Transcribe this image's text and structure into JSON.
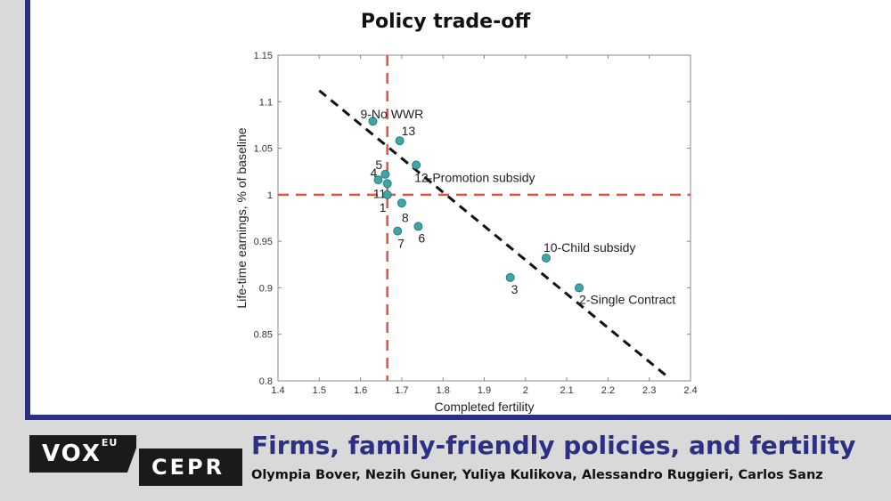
{
  "chart_data": {
    "type": "scatter",
    "title": "Policy trade-off",
    "xlabel": "Completed fertility",
    "ylabel": "Life-time earnings, % of baseline",
    "xlim": [
      1.4,
      2.4
    ],
    "ylim": [
      0.8,
      1.15
    ],
    "xticks": [
      "1.4",
      "1.5",
      "1.6",
      "1.7",
      "1.8",
      "1.9",
      "2",
      "2.1",
      "2.2",
      "2.3",
      "2.4"
    ],
    "yticks": [
      "0.8",
      "0.85",
      "0.9",
      "0.95",
      "1",
      "1.05",
      "1.1",
      "1.15"
    ],
    "grid": false,
    "points": [
      {
        "label": "9-No WWR",
        "x": 1.63,
        "y": 1.079
      },
      {
        "label": "13",
        "x": 1.695,
        "y": 1.058
      },
      {
        "label": "12-Promotion subsidy",
        "x": 1.735,
        "y": 1.032
      },
      {
        "label": "5",
        "x": 1.66,
        "y": 1.022
      },
      {
        "label": "4",
        "x": 1.643,
        "y": 1.016
      },
      {
        "label": "11",
        "x": 1.665,
        "y": 1.012
      },
      {
        "label": "1",
        "x": 1.665,
        "y": 1.0
      },
      {
        "label": "8",
        "x": 1.7,
        "y": 0.991
      },
      {
        "label": "6",
        "x": 1.74,
        "y": 0.966
      },
      {
        "label": "7",
        "x": 1.69,
        "y": 0.961
      },
      {
        "label": "10-Child subsidy",
        "x": 2.05,
        "y": 0.932
      },
      {
        "label": "3",
        "x": 1.963,
        "y": 0.911
      },
      {
        "label": "2-Single Contract",
        "x": 2.13,
        "y": 0.9
      }
    ],
    "reference_lines": {
      "vertical_x": 1.665,
      "horizontal_y": 1.0,
      "color": "#e8523f"
    },
    "trend_line": {
      "x": [
        1.5,
        2.34
      ],
      "y": [
        1.112,
        0.806
      ],
      "style": "dashed",
      "color": "#111111"
    },
    "marker_color": "#3fa6a6"
  },
  "footer": {
    "vox": "VOX",
    "vox_sup": "EU",
    "cepr": "CEPR",
    "headline": "Firms, family-friendly policies, and fertility",
    "authors": "Olympia Bover, Nezih Guner, Yuliya Kulikova, Alessandro Ruggieri, Carlos Sanz"
  },
  "colors": {
    "brand_blue": "#2b2f86",
    "background": "#d9d9d9"
  }
}
